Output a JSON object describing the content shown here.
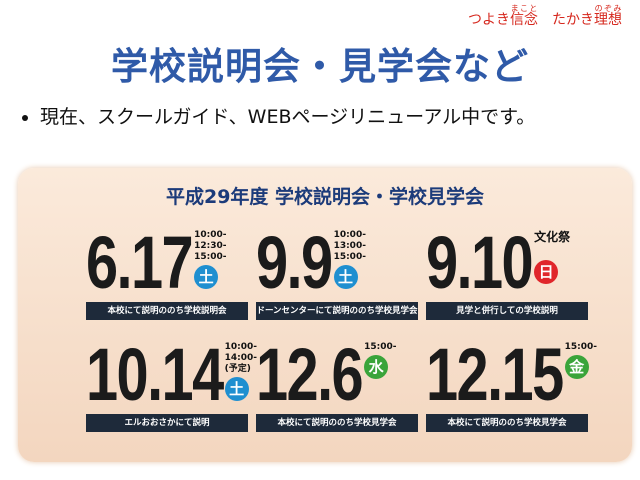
{
  "header": {
    "motto": [
      {
        "prefix": "つよき",
        "base": "信念",
        "ruby": "まこと"
      },
      {
        "prefix": "たかき",
        "base": "理想",
        "ruby": "のぞみ"
      }
    ],
    "title": "学校説明会・見学会など"
  },
  "bullets": [
    "現在、スクールガイド、WEBページリニューアル中です。"
  ],
  "panel": {
    "title": "平成29年度 学校説明会・学校見学会",
    "events": [
      {
        "date": "6.17",
        "times": [
          "10:00-",
          "12:30-",
          "15:00-"
        ],
        "day": "土",
        "color": "#1f8fd0",
        "caption": "本校にて説明ののち学校説明会"
      },
      {
        "date": "9.9",
        "times": [
          "10:00-",
          "13:00-",
          "15:00-"
        ],
        "day": "土",
        "color": "#1f8fd0",
        "caption": "ドーンセンターにて説明ののち学校見学会"
      },
      {
        "date": "9.10",
        "note": "文化祭",
        "day": "日",
        "color": "#e0262b",
        "caption": "見学と併行しての学校説明"
      },
      {
        "date": "10.14",
        "times": [
          "10:00-",
          "14:00-",
          "(予定)"
        ],
        "day": "土",
        "color": "#1f8fd0",
        "caption": "エルおおさかにて説明"
      },
      {
        "date": "12.6",
        "times": [
          "15:00-"
        ],
        "day": "水",
        "color": "#3aa43a",
        "caption": "本校にて説明ののち学校見学会"
      },
      {
        "date": "12.15",
        "times": [
          "15:00-"
        ],
        "day": "金",
        "color": "#3aa43a",
        "caption": "本校にて説明ののち学校見学会"
      }
    ]
  }
}
